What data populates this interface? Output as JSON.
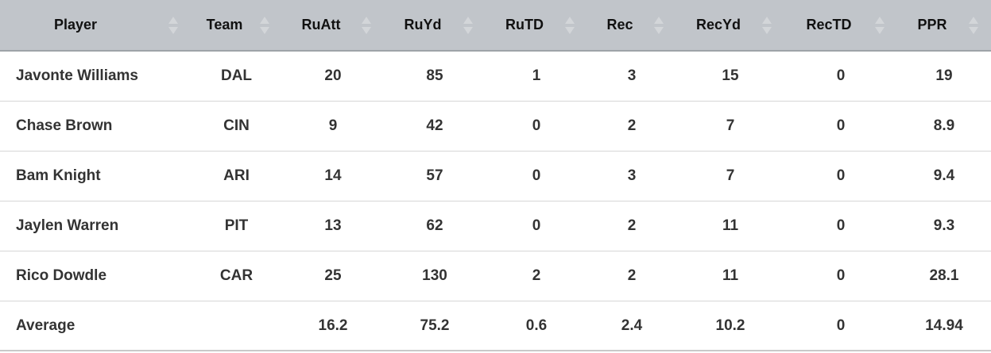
{
  "table": {
    "headers": [
      "Player",
      "Team",
      "RuAtt",
      "RuYd",
      "RuTD",
      "Rec",
      "RecYd",
      "RecTD",
      "PPR"
    ],
    "rows": [
      [
        "Javonte Williams",
        "DAL",
        "20",
        "85",
        "1",
        "3",
        "15",
        "0",
        "19"
      ],
      [
        "Chase Brown",
        "CIN",
        "9",
        "42",
        "0",
        "2",
        "7",
        "0",
        "8.9"
      ],
      [
        "Bam Knight",
        "ARI",
        "14",
        "57",
        "0",
        "3",
        "7",
        "0",
        "9.4"
      ],
      [
        "Jaylen Warren",
        "PIT",
        "13",
        "62",
        "0",
        "2",
        "11",
        "0",
        "9.3"
      ],
      [
        "Rico Dowdle",
        "CAR",
        "25",
        "130",
        "2",
        "2",
        "11",
        "0",
        "28.1"
      ]
    ],
    "footer": {
      "label": "Average",
      "values": [
        "16.2",
        "75.2",
        "0.6",
        "2.4",
        "10.2",
        "0",
        "14.94"
      ]
    }
  }
}
